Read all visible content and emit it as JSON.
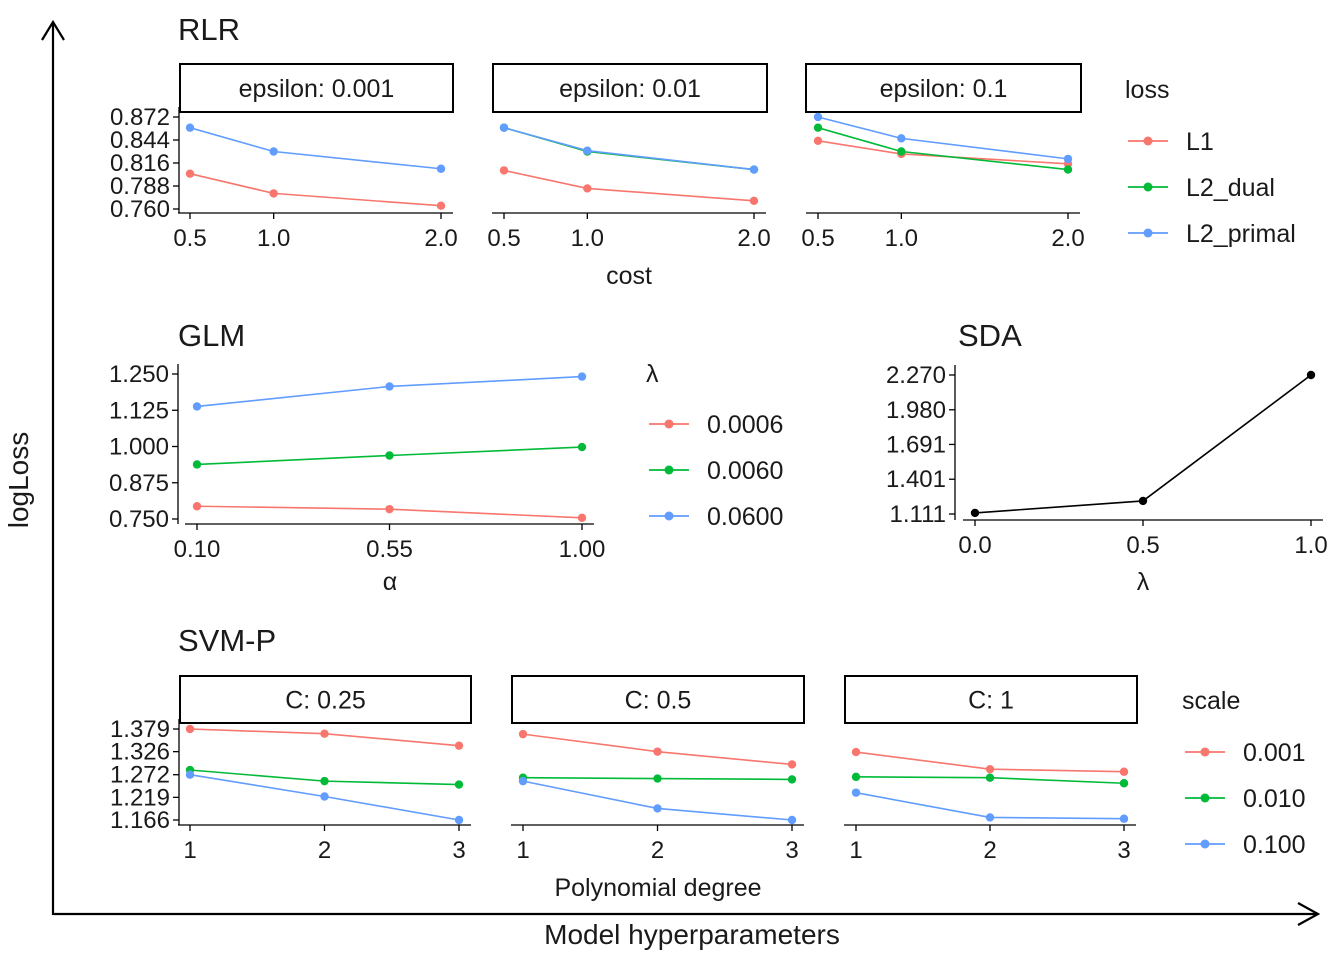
{
  "figure": {
    "ylabel": "logLoss",
    "xlabel": "Model hyperparameters"
  },
  "colors": {
    "red": "#F8766D",
    "green": "#00BA38",
    "blue": "#619CFF",
    "black": "#000000",
    "axis": "#000000"
  },
  "chart_data": [
    {
      "title": "RLR",
      "type": "line",
      "xlabel": "cost",
      "facet_strips": [
        "epsilon: 0.001",
        "epsilon: 0.01",
        "epsilon: 0.1"
      ],
      "x": [
        0.5,
        1.0,
        2.0
      ],
      "x_ticks": [
        "0.5",
        "1.0",
        "2.0"
      ],
      "ylim": [
        0.76,
        0.872
      ],
      "y_ticks": [
        "0.760",
        "0.788",
        "0.816",
        "0.844",
        "0.872"
      ],
      "legend_title": "loss",
      "legend_entries": [
        "L1",
        "L2_dual",
        "L2_primal"
      ],
      "facets": [
        {
          "series": [
            {
              "name": "L1",
              "values": [
                0.803,
                0.779,
                0.764
              ]
            },
            {
              "name": "L2_primal",
              "values": [
                0.859,
                0.83,
                0.809
              ]
            }
          ]
        },
        {
          "series": [
            {
              "name": "L1",
              "values": [
                0.807,
                0.785,
                0.77
              ]
            },
            {
              "name": "L2_dual",
              "values": [
                0.859,
                0.83,
                0.808
              ]
            },
            {
              "name": "L2_primal",
              "values": [
                0.859,
                0.831,
                0.808
              ]
            }
          ]
        },
        {
          "series": [
            {
              "name": "L1",
              "values": [
                0.843,
                0.827,
                0.815
              ]
            },
            {
              "name": "L2_dual",
              "values": [
                0.859,
                0.83,
                0.808
              ]
            },
            {
              "name": "L2_primal",
              "values": [
                0.872,
                0.846,
                0.821
              ]
            }
          ]
        }
      ]
    },
    {
      "title": "GLM",
      "type": "line",
      "xlabel": "α",
      "x": [
        0.1,
        0.55,
        1.0
      ],
      "x_ticks": [
        "0.10",
        "0.55",
        "1.00"
      ],
      "ylim": [
        0.75,
        1.25
      ],
      "y_ticks": [
        "0.750",
        "0.875",
        "1.000",
        "1.125",
        "1.250"
      ],
      "legend_title": "λ",
      "legend_entries": [
        "0.0006",
        "0.0060",
        "0.0600"
      ],
      "series": [
        {
          "name": "0.0006",
          "values": [
            0.794,
            0.784,
            0.754
          ]
        },
        {
          "name": "0.0060",
          "values": [
            0.938,
            0.969,
            0.998
          ]
        },
        {
          "name": "0.0600",
          "values": [
            1.138,
            1.207,
            1.241
          ]
        }
      ]
    },
    {
      "title": "SDA",
      "type": "line",
      "xlabel": "λ",
      "x": [
        0.0,
        0.5,
        1.0
      ],
      "x_ticks": [
        "0.0",
        "0.5",
        "1.0"
      ],
      "ylim": [
        1.111,
        2.27
      ],
      "y_ticks": [
        "1.111",
        "1.401",
        "1.691",
        "1.980",
        "2.270"
      ],
      "series": [
        {
          "values": [
            1.12,
            1.22,
            2.27
          ]
        }
      ]
    },
    {
      "title": "SVM-P",
      "type": "line",
      "xlabel": "Polynomial degree",
      "facet_strips": [
        "C: 0.25",
        "C: 0.5",
        "C: 1"
      ],
      "x": [
        1,
        2,
        3
      ],
      "x_ticks": [
        "1",
        "2",
        "3"
      ],
      "ylim": [
        1.166,
        1.379
      ],
      "y_ticks": [
        "1.166",
        "1.219",
        "1.272",
        "1.326",
        "1.379"
      ],
      "legend_title": "scale",
      "legend_entries": [
        "0.001",
        "0.010",
        "0.100"
      ],
      "facets": [
        {
          "series": [
            {
              "name": "0.001",
              "values": [
                1.379,
                1.368,
                1.34
              ]
            },
            {
              "name": "0.010",
              "values": [
                1.283,
                1.257,
                1.249
              ]
            },
            {
              "name": "0.100",
              "values": [
                1.272,
                1.221,
                1.166
              ]
            }
          ]
        },
        {
          "series": [
            {
              "name": "0.001",
              "values": [
                1.367,
                1.326,
                1.296
              ]
            },
            {
              "name": "0.010",
              "values": [
                1.265,
                1.263,
                1.261
              ]
            },
            {
              "name": "0.100",
              "values": [
                1.257,
                1.193,
                1.166
              ]
            }
          ]
        },
        {
          "series": [
            {
              "name": "0.001",
              "values": [
                1.325,
                1.285,
                1.279
              ]
            },
            {
              "name": "0.010",
              "values": [
                1.267,
                1.265,
                1.252
              ]
            },
            {
              "name": "0.100",
              "values": [
                1.23,
                1.172,
                1.169
              ]
            }
          ]
        }
      ]
    }
  ]
}
